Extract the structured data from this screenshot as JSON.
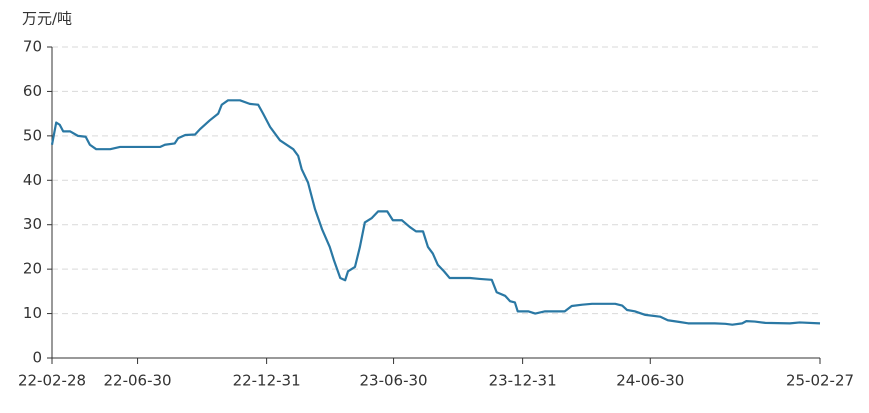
{
  "chart_data": {
    "type": "line",
    "y_label": "万元/吨",
    "color": "#2a78a4",
    "x": [
      "22-02-28",
      "22-03-06",
      "22-03-11",
      "22-03-16",
      "22-03-26",
      "22-04-06",
      "22-04-17",
      "22-04-23",
      "22-05-02",
      "22-05-22",
      "22-06-05",
      "22-08-01",
      "22-08-08",
      "22-08-22",
      "22-08-27",
      "22-09-06",
      "22-09-20",
      "22-09-27",
      "22-10-11",
      "22-10-23",
      "22-10-28",
      "22-11-06",
      "22-11-23",
      "22-12-07",
      "22-12-19",
      "22-12-26",
      "23-01-05",
      "23-01-19",
      "23-02-07",
      "23-02-14",
      "23-02-19",
      "23-02-28",
      "23-03-10",
      "23-03-20",
      "23-03-31",
      "23-04-06",
      "23-04-15",
      "23-04-22",
      "23-04-26",
      "23-05-06",
      "23-05-13",
      "23-05-20",
      "23-05-30",
      "23-06-08",
      "23-06-21",
      "23-06-29",
      "23-07-12",
      "23-07-23",
      "23-08-01",
      "23-08-11",
      "23-08-18",
      "23-08-25",
      "23-09-01",
      "23-09-10",
      "23-09-18",
      "23-10-17",
      "23-10-31",
      "23-11-17",
      "23-11-24",
      "23-12-06",
      "23-12-13",
      "23-12-20",
      "23-12-24",
      "24-01-08",
      "24-01-18",
      "24-02-01",
      "24-02-29",
      "24-03-10",
      "24-03-25",
      "24-04-08",
      "24-05-11",
      "24-05-21",
      "24-05-28",
      "24-06-08",
      "24-06-23",
      "24-07-14",
      "24-07-25",
      "24-08-11",
      "24-08-23",
      "24-09-30",
      "24-10-15",
      "24-10-25",
      "24-11-08",
      "24-11-14",
      "24-11-26",
      "24-12-11",
      "25-01-15",
      "25-01-29",
      "25-02-27"
    ],
    "values": [
      48,
      53,
      52.5,
      51,
      51,
      50,
      49.8,
      48,
      47,
      47,
      47.5,
      47.5,
      48,
      48.3,
      49.5,
      50.2,
      50.3,
      51.5,
      53.5,
      55,
      57,
      58,
      58,
      57.2,
      57,
      55,
      52,
      49,
      47,
      45.5,
      42.5,
      39.5,
      33.5,
      29,
      25,
      22,
      18,
      17.5,
      19.5,
      20.5,
      25,
      30.5,
      31.5,
      33,
      33,
      31,
      31,
      29.5,
      28.5,
      28.5,
      25,
      23.5,
      21,
      19.5,
      18,
      18,
      17.8,
      17.6,
      14.8,
      14,
      12.8,
      12.5,
      10.5,
      10.5,
      10,
      10.5,
      10.5,
      11.7,
      12,
      12.2,
      12.2,
      11.8,
      10.8,
      10.5,
      9.7,
      9.3,
      8.5,
      8.1,
      7.8,
      7.8,
      7.7,
      7.5,
      7.8,
      8.3,
      8.2,
      7.9,
      7.8,
      8,
      7.8
    ],
    "xlim": [
      "22-02-28",
      "25-02-27"
    ],
    "xticks": [
      "22-02-28",
      "22-06-30",
      "22-12-31",
      "23-06-30",
      "23-12-31",
      "24-06-30",
      "25-02-27"
    ],
    "ylim": [
      0,
      70
    ],
    "yticks": [
      0,
      10,
      20,
      30,
      40,
      50,
      60,
      70
    ],
    "grid": true
  }
}
